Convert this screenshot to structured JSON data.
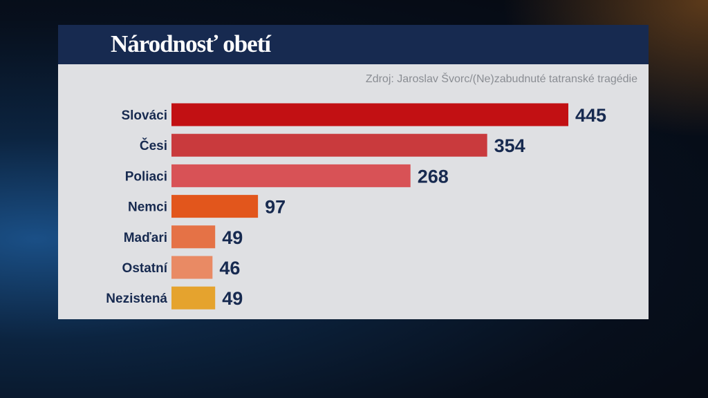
{
  "chart_data": {
    "type": "bar",
    "orientation": "horizontal",
    "title": "Národnosť obetí",
    "source": "Zdroj: Jaroslav Švorc/(Ne)zabudnuté tatranské tragédie",
    "categories": [
      "Slováci",
      "Česi",
      "Poliaci",
      "Nemci",
      "Maďari",
      "Ostatní",
      "Nezistená"
    ],
    "values": [
      445,
      354,
      268,
      97,
      49,
      46,
      49
    ],
    "colors": [
      "#c21013",
      "#c93a3d",
      "#d85256",
      "#e2561c",
      "#e57246",
      "#e98a64",
      "#e5a32e"
    ],
    "xlim": [
      0,
      445
    ],
    "grid": false,
    "legend": "none"
  }
}
